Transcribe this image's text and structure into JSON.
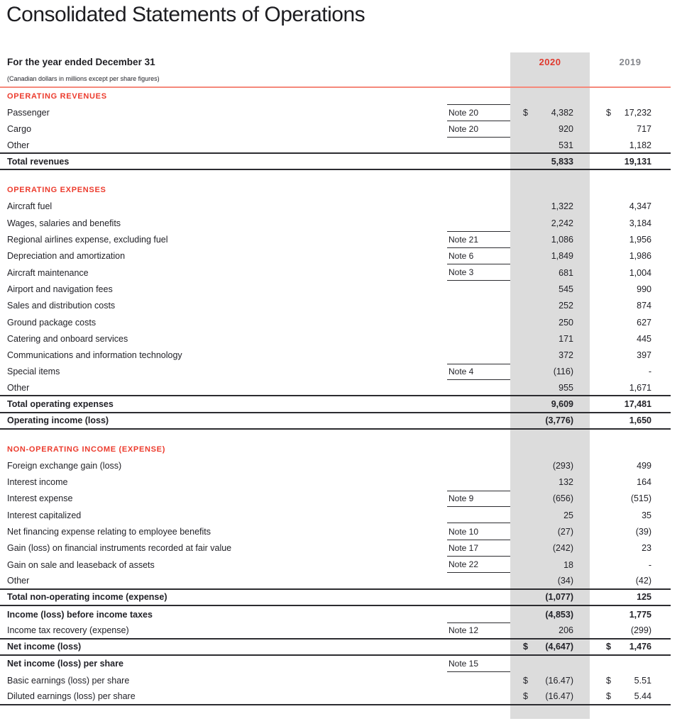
{
  "page": {
    "title": "Consolidated Statements of Operations",
    "period_label": "For the year ended December 31",
    "units_label": "(Canadian dollars in millions except per share figures)",
    "col_2020": "2020",
    "col_2019": "2019"
  },
  "colors": {
    "section_heading_red": "#ec3b2d",
    "year_2020_red": "#e0392e",
    "year_2019_gray": "#85878c",
    "highlight_band_gray": "#dcdcdc",
    "rule_dark": "#2c2c30",
    "divider_salmon": "#f5897b",
    "body_text": "#222228"
  },
  "rows": [
    {
      "type": "section",
      "label": "OPERATING REVENUES"
    },
    {
      "type": "item",
      "label": "Passenger",
      "note": "Note 20",
      "cur20": "$",
      "val20": "4,382",
      "cur19": "$",
      "val19": "17,232",
      "noteTop": true,
      "noteBot": true
    },
    {
      "type": "item",
      "label": "Cargo",
      "note": "Note 20",
      "val20": "920",
      "val19": "717",
      "noteBot": true
    },
    {
      "type": "item",
      "label": "Other",
      "val20": "531",
      "val19": "1,182",
      "ruleBelow": true
    },
    {
      "type": "total",
      "label": "Total revenues",
      "val20": "5,833",
      "val19": "19,131",
      "ruleBelow": true
    },
    {
      "type": "spacer"
    },
    {
      "type": "section",
      "label": "OPERATING EXPENSES"
    },
    {
      "type": "item",
      "label": "Aircraft fuel",
      "val20": "1,322",
      "val19": "4,347"
    },
    {
      "type": "item",
      "label": "Wages, salaries and benefits",
      "val20": "2,242",
      "val19": "3,184"
    },
    {
      "type": "item",
      "label": "Regional airlines expense, excluding fuel",
      "note": "Note 21",
      "val20": "1,086",
      "val19": "1,956",
      "noteTop": true,
      "noteBot": true
    },
    {
      "type": "item",
      "label": "Depreciation and amortization",
      "note": "Note 6",
      "val20": "1,849",
      "val19": "1,986",
      "noteBot": true
    },
    {
      "type": "item",
      "label": "Aircraft maintenance",
      "note": "Note 3",
      "val20": "681",
      "val19": "1,004",
      "noteBot": true
    },
    {
      "type": "item",
      "label": "Airport and navigation fees",
      "val20": "545",
      "val19": "990"
    },
    {
      "type": "item",
      "label": "Sales and distribution costs",
      "val20": "252",
      "val19": "874"
    },
    {
      "type": "item",
      "label": "Ground package costs",
      "val20": "250",
      "val19": "627"
    },
    {
      "type": "item",
      "label": "Catering and onboard services",
      "val20": "171",
      "val19": "445"
    },
    {
      "type": "item",
      "label": "Communications and information technology",
      "val20": "372",
      "val19": "397"
    },
    {
      "type": "item",
      "label": "Special items",
      "note": "Note 4",
      "val20": "(116)",
      "val19": "-",
      "noteTop": true,
      "noteBot": true
    },
    {
      "type": "item",
      "label": "Other",
      "val20": "955",
      "val19": "1,671",
      "ruleBelow": true
    },
    {
      "type": "total",
      "label": "Total operating expenses",
      "val20": "9,609",
      "val19": "17,481",
      "ruleBelow": true
    },
    {
      "type": "total",
      "label": "Operating income (loss)",
      "val20": "(3,776)",
      "val19": "1,650",
      "ruleBelow": true
    },
    {
      "type": "spacer"
    },
    {
      "type": "section",
      "label": "NON-OPERATING INCOME (EXPENSE)"
    },
    {
      "type": "item",
      "label": "Foreign exchange gain (loss)",
      "val20": "(293)",
      "val19": "499"
    },
    {
      "type": "item",
      "label": "Interest income",
      "val20": "132",
      "val19": "164"
    },
    {
      "type": "item",
      "label": "Interest expense",
      "note": "Note 9",
      "val20": "(656)",
      "val19": "(515)",
      "noteTop": true,
      "noteBot": true
    },
    {
      "type": "item",
      "label": "Interest capitalized",
      "val20": "25",
      "val19": "35",
      "noteBot": true
    },
    {
      "type": "item",
      "label": "Net financing expense relating to employee benefits",
      "note": "Note 10",
      "val20": "(27)",
      "val19": "(39)",
      "noteBot": true
    },
    {
      "type": "item",
      "label": "Gain (loss) on financial instruments recorded at fair value",
      "note": "Note 17",
      "val20": "(242)",
      "val19": "23",
      "noteBot": true
    },
    {
      "type": "item",
      "label": "Gain on sale and leaseback of assets",
      "note": "Note 22",
      "val20": "18",
      "val19": "-",
      "noteBot": true
    },
    {
      "type": "item",
      "label": "Other",
      "val20": "(34)",
      "val19": "(42)",
      "ruleBelow": true
    },
    {
      "type": "total",
      "label": "Total non-operating income (expense)",
      "val20": "(1,077)",
      "val19": "125",
      "ruleBelow": true
    },
    {
      "type": "total",
      "label": "Income (loss) before income taxes",
      "val20": "(4,853)",
      "val19": "1,775"
    },
    {
      "type": "item",
      "label": "Income tax recovery (expense)",
      "note": "Note 12",
      "val20": "206",
      "val19": "(299)",
      "noteTop": true,
      "ruleBelow": true
    },
    {
      "type": "total",
      "label": "Net income (loss)",
      "cur20": "$",
      "val20": "(4,647)",
      "cur19": "$",
      "val19": "1,476",
      "ruleBelow": true
    },
    {
      "type": "total",
      "label": "Net income (loss) per share",
      "note": "Note 15",
      "noteBot": true
    },
    {
      "type": "item",
      "label": "Basic earnings (loss) per share",
      "cur20": "$",
      "val20": "(16.47)",
      "cur19": "$",
      "val19": "5.51"
    },
    {
      "type": "item",
      "label": "Diluted earnings (loss) per share",
      "cur20": "$",
      "val20": "(16.47)",
      "cur19": "$",
      "val19": "5.44",
      "ruleBelow": true
    }
  ]
}
